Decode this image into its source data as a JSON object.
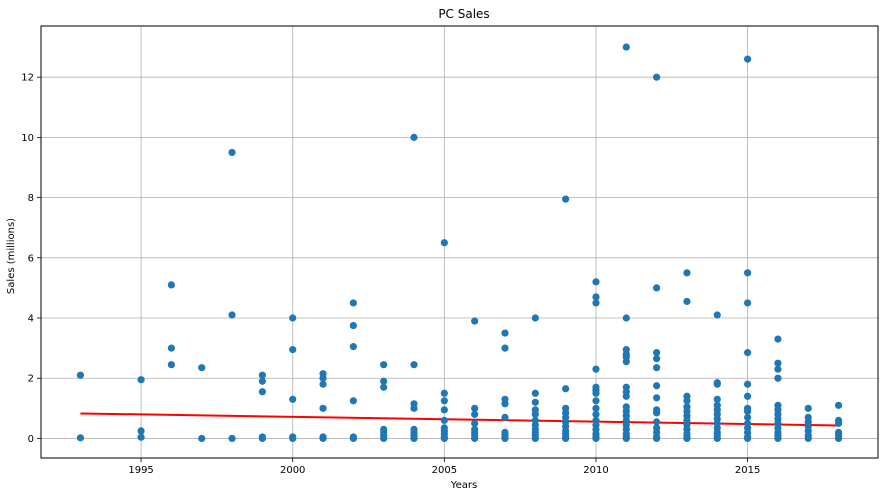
{
  "chart_data": {
    "type": "scatter",
    "title": "PC Sales",
    "xlabel": "Years",
    "ylabel": "Sales (millions)",
    "xlim": [
      1991.7,
      2019.3
    ],
    "ylim": [
      -0.65,
      13.7
    ],
    "xticks": [
      1995,
      2000,
      2005,
      2010,
      2015
    ],
    "yticks": [
      0,
      2,
      4,
      6,
      8,
      10,
      12
    ],
    "grid": true,
    "colors": {
      "points": "#1f77b4",
      "trend": "#ff0000",
      "grid": "#b0b0b0"
    },
    "points": [
      [
        1993,
        2.1
      ],
      [
        1993,
        0.02
      ],
      [
        1995,
        1.95
      ],
      [
        1995,
        0.25
      ],
      [
        1995,
        0.04
      ],
      [
        1996,
        5.1
      ],
      [
        1996,
        3.0
      ],
      [
        1996,
        2.45
      ],
      [
        1997,
        2.35
      ],
      [
        1997,
        0.0
      ],
      [
        1998,
        9.5
      ],
      [
        1998,
        4.1
      ],
      [
        1998,
        0.0
      ],
      [
        1999,
        2.1
      ],
      [
        1999,
        1.9
      ],
      [
        1999,
        1.55
      ],
      [
        1999,
        0.05
      ],
      [
        1999,
        0.0
      ],
      [
        2000,
        4.0
      ],
      [
        2000,
        2.95
      ],
      [
        2000,
        1.3
      ],
      [
        2000,
        0.05
      ],
      [
        2000,
        0.0
      ],
      [
        2001,
        2.15
      ],
      [
        2001,
        2.0
      ],
      [
        2001,
        1.8
      ],
      [
        2001,
        1.0
      ],
      [
        2001,
        0.05
      ],
      [
        2001,
        0.0
      ],
      [
        2002,
        4.5
      ],
      [
        2002,
        3.75
      ],
      [
        2002,
        3.05
      ],
      [
        2002,
        1.25
      ],
      [
        2002,
        0.05
      ],
      [
        2002,
        0.0
      ],
      [
        2003,
        2.45
      ],
      [
        2003,
        1.9
      ],
      [
        2003,
        1.7
      ],
      [
        2003,
        0.3
      ],
      [
        2003,
        0.2
      ],
      [
        2003,
        0.1
      ],
      [
        2003,
        0.0
      ],
      [
        2004,
        10.0
      ],
      [
        2004,
        2.45
      ],
      [
        2004,
        1.15
      ],
      [
        2004,
        1.0
      ],
      [
        2004,
        0.3
      ],
      [
        2004,
        0.2
      ],
      [
        2004,
        0.1
      ],
      [
        2004,
        0.05
      ],
      [
        2004,
        0.0
      ],
      [
        2005,
        6.5
      ],
      [
        2005,
        1.5
      ],
      [
        2005,
        1.25
      ],
      [
        2005,
        0.95
      ],
      [
        2005,
        0.6
      ],
      [
        2005,
        0.35
      ],
      [
        2005,
        0.25
      ],
      [
        2005,
        0.15
      ],
      [
        2005,
        0.05
      ],
      [
        2005,
        0.0
      ],
      [
        2006,
        3.9
      ],
      [
        2006,
        1.0
      ],
      [
        2006,
        0.8
      ],
      [
        2006,
        0.5
      ],
      [
        2006,
        0.3
      ],
      [
        2006,
        0.2
      ],
      [
        2006,
        0.1
      ],
      [
        2006,
        0.0
      ],
      [
        2007,
        3.5
      ],
      [
        2007,
        3.0
      ],
      [
        2007,
        1.3
      ],
      [
        2007,
        1.15
      ],
      [
        2007,
        0.7
      ],
      [
        2007,
        0.2
      ],
      [
        2007,
        0.1
      ],
      [
        2007,
        0.05
      ],
      [
        2007,
        0.0
      ],
      [
        2008,
        4.0
      ],
      [
        2008,
        1.5
      ],
      [
        2008,
        1.2
      ],
      [
        2008,
        0.95
      ],
      [
        2008,
        0.8
      ],
      [
        2008,
        0.6
      ],
      [
        2008,
        0.45
      ],
      [
        2008,
        0.3
      ],
      [
        2008,
        0.2
      ],
      [
        2008,
        0.1
      ],
      [
        2008,
        0.0
      ],
      [
        2009,
        7.95
      ],
      [
        2009,
        1.65
      ],
      [
        2009,
        1.0
      ],
      [
        2009,
        0.85
      ],
      [
        2009,
        0.7
      ],
      [
        2009,
        0.55
      ],
      [
        2009,
        0.4
      ],
      [
        2009,
        0.25
      ],
      [
        2009,
        0.15
      ],
      [
        2009,
        0.05
      ],
      [
        2009,
        0.0
      ],
      [
        2010,
        5.2
      ],
      [
        2010,
        4.7
      ],
      [
        2010,
        4.5
      ],
      [
        2010,
        2.3
      ],
      [
        2010,
        1.7
      ],
      [
        2010,
        1.6
      ],
      [
        2010,
        1.5
      ],
      [
        2010,
        1.25
      ],
      [
        2010,
        1.0
      ],
      [
        2010,
        0.8
      ],
      [
        2010,
        0.6
      ],
      [
        2010,
        0.45
      ],
      [
        2010,
        0.3
      ],
      [
        2010,
        0.15
      ],
      [
        2010,
        0.05
      ],
      [
        2010,
        0.0
      ],
      [
        2011,
        13.0
      ],
      [
        2011,
        4.0
      ],
      [
        2011,
        2.95
      ],
      [
        2011,
        2.8
      ],
      [
        2011,
        2.7
      ],
      [
        2011,
        2.55
      ],
      [
        2011,
        1.7
      ],
      [
        2011,
        1.55
      ],
      [
        2011,
        1.4
      ],
      [
        2011,
        1.05
      ],
      [
        2011,
        0.9
      ],
      [
        2011,
        0.75
      ],
      [
        2011,
        0.6
      ],
      [
        2011,
        0.45
      ],
      [
        2011,
        0.3
      ],
      [
        2011,
        0.15
      ],
      [
        2011,
        0.05
      ],
      [
        2011,
        0.0
      ],
      [
        2012,
        12.0
      ],
      [
        2012,
        5.0
      ],
      [
        2012,
        2.85
      ],
      [
        2012,
        2.65
      ],
      [
        2012,
        2.35
      ],
      [
        2012,
        1.75
      ],
      [
        2012,
        1.35
      ],
      [
        2012,
        0.95
      ],
      [
        2012,
        0.85
      ],
      [
        2012,
        0.55
      ],
      [
        2012,
        0.35
      ],
      [
        2012,
        0.2
      ],
      [
        2012,
        0.05
      ],
      [
        2012,
        0.0
      ],
      [
        2013,
        5.5
      ],
      [
        2013,
        4.55
      ],
      [
        2013,
        1.4
      ],
      [
        2013,
        1.25
      ],
      [
        2013,
        1.05
      ],
      [
        2013,
        0.9
      ],
      [
        2013,
        0.75
      ],
      [
        2013,
        0.6
      ],
      [
        2013,
        0.45
      ],
      [
        2013,
        0.3
      ],
      [
        2013,
        0.15
      ],
      [
        2013,
        0.05
      ],
      [
        2013,
        0.0
      ],
      [
        2014,
        4.1
      ],
      [
        2014,
        1.85
      ],
      [
        2014,
        1.8
      ],
      [
        2014,
        1.3
      ],
      [
        2014,
        1.1
      ],
      [
        2014,
        0.95
      ],
      [
        2014,
        0.8
      ],
      [
        2014,
        0.65
      ],
      [
        2014,
        0.5
      ],
      [
        2014,
        0.35
      ],
      [
        2014,
        0.2
      ],
      [
        2014,
        0.1
      ],
      [
        2014,
        0.0
      ],
      [
        2015,
        12.6
      ],
      [
        2015,
        5.5
      ],
      [
        2015,
        4.5
      ],
      [
        2015,
        2.85
      ],
      [
        2015,
        1.8
      ],
      [
        2015,
        1.4
      ],
      [
        2015,
        1.0
      ],
      [
        2015,
        0.9
      ],
      [
        2015,
        0.7
      ],
      [
        2015,
        0.5
      ],
      [
        2015,
        0.35
      ],
      [
        2015,
        0.2
      ],
      [
        2015,
        0.05
      ],
      [
        2015,
        0.0
      ],
      [
        2016,
        3.3
      ],
      [
        2016,
        2.5
      ],
      [
        2016,
        2.3
      ],
      [
        2016,
        2.0
      ],
      [
        2016,
        1.1
      ],
      [
        2016,
        0.95
      ],
      [
        2016,
        0.8
      ],
      [
        2016,
        0.65
      ],
      [
        2016,
        0.5
      ],
      [
        2016,
        0.35
      ],
      [
        2016,
        0.2
      ],
      [
        2016,
        0.1
      ],
      [
        2016,
        0.0
      ],
      [
        2017,
        1.0
      ],
      [
        2017,
        0.7
      ],
      [
        2017,
        0.55
      ],
      [
        2017,
        0.4
      ],
      [
        2017,
        0.25
      ],
      [
        2017,
        0.1
      ],
      [
        2017,
        0.0
      ],
      [
        2018,
        1.1
      ],
      [
        2018,
        0.6
      ],
      [
        2018,
        0.5
      ],
      [
        2018,
        0.2
      ],
      [
        2018,
        0.1
      ],
      [
        2018,
        0.0
      ]
    ],
    "trend_line": {
      "x": [
        1993,
        2018
      ],
      "y": [
        0.83,
        0.43
      ]
    }
  }
}
